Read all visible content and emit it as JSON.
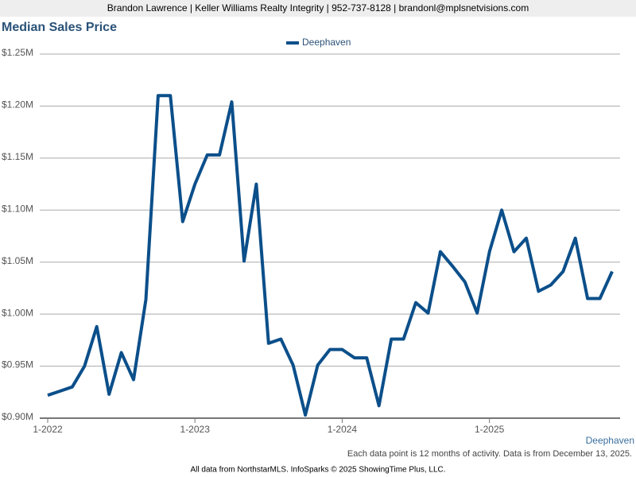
{
  "header": "Brandon Lawrence | Keller Williams Realty Integrity | 952-737-8128 | brandonl@mplsnetvisions.com",
  "chart_data": {
    "type": "line",
    "title": "Median Sales Price",
    "categories": [
      "1-2022",
      null,
      null,
      null,
      null,
      null,
      null,
      null,
      null,
      null,
      null,
      null,
      "1-2023",
      null,
      null,
      null,
      null,
      null,
      null,
      null,
      null,
      null,
      null,
      null,
      "1-2024",
      null,
      null,
      null,
      null,
      null,
      null,
      null,
      null,
      null,
      null,
      null,
      "1-2025",
      null,
      null,
      null,
      null,
      null,
      null,
      null,
      null,
      null,
      null
    ],
    "series": [
      {
        "name": "Deephaven",
        "color": "#0b4f8a",
        "values": [
          922000,
          926000,
          930000,
          950000,
          988000,
          923000,
          963000,
          937000,
          1014000,
          1210000,
          1210000,
          1089000,
          1125000,
          1153000,
          1153000,
          1204000,
          1051000,
          1125000,
          972000,
          976000,
          951000,
          903000,
          951000,
          966000,
          966000,
          958000,
          958000,
          912000,
          976000,
          976000,
          1011000,
          1001000,
          1060000,
          1046000,
          1031000,
          1001000,
          1060000,
          1100000,
          1060000,
          1073000,
          1022000,
          1028000,
          1041000,
          1073000,
          1015000,
          1015000,
          1041000
        ]
      }
    ],
    "ylim": [
      900000,
      1250000
    ],
    "yticks": [
      {
        "value": 900000,
        "label": "$0.90M"
      },
      {
        "value": 950000,
        "label": "$0.95M"
      },
      {
        "value": 1000000,
        "label": "$1.00M"
      },
      {
        "value": 1050000,
        "label": "$1.05M"
      },
      {
        "value": 1100000,
        "label": "$1.10M"
      },
      {
        "value": 1150000,
        "label": "$1.15M"
      },
      {
        "value": 1200000,
        "label": "$1.20M"
      },
      {
        "value": 1250000,
        "label": "$1.25M"
      }
    ],
    "grid": true,
    "note": "Each data point is 12 months of activity. Data is from December 13, 2025.",
    "source": "All data from NorthstarMLS. InfoSparks © 2025 ShowingTime Plus, LLC."
  }
}
